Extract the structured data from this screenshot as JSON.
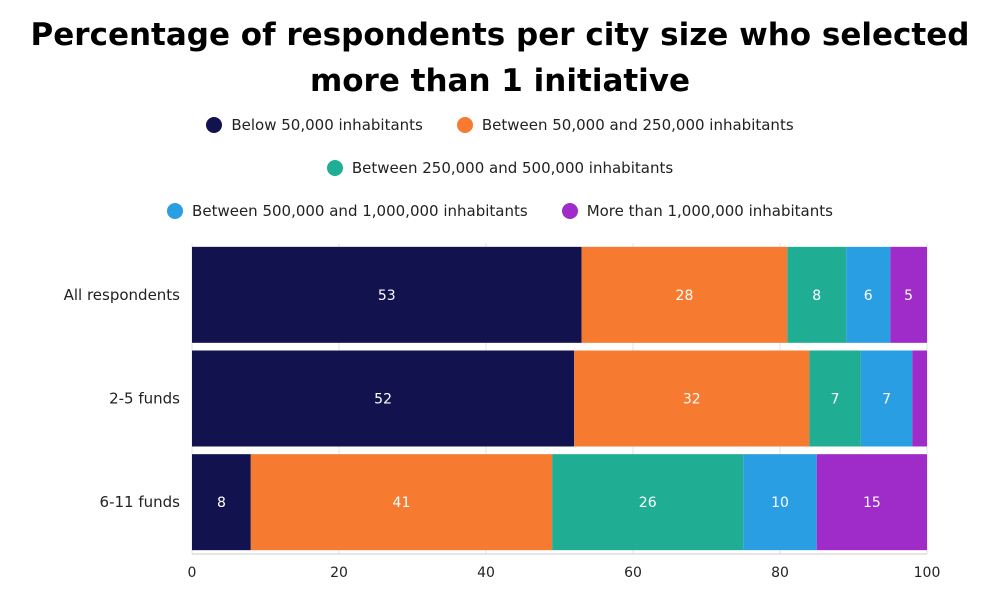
{
  "chart_data": {
    "type": "bar",
    "orientation": "horizontal",
    "stacked": true,
    "title": "Percentage of respondents per city size who selected more than 1 initiative",
    "title_lines": [
      "Percentage of respondents per city size who selected",
      "more than 1 initiative"
    ],
    "categories": [
      "All respondents",
      "2-5 funds",
      "6-11 funds"
    ],
    "series": [
      {
        "name": "Below 50,000 inhabitants",
        "color": "#12124f",
        "values": [
          53,
          52,
          8
        ],
        "labels": [
          "53",
          "52",
          "8"
        ]
      },
      {
        "name": "Between 50,000 and 250,000 inhabitants",
        "color": "#f67a30",
        "values": [
          28,
          32,
          41
        ],
        "labels": [
          "28",
          "32",
          "41"
        ]
      },
      {
        "name": "Between 250,000 and 500,000 inhabitants",
        "color": "#1fae93",
        "values": [
          8,
          7,
          26
        ],
        "labels": [
          "8",
          "7",
          "26"
        ]
      },
      {
        "name": "Between 500,000 and 1,000,000 inhabitants",
        "color": "#2a9ee2",
        "values": [
          6,
          7,
          10
        ],
        "labels": [
          "6",
          "7",
          "10"
        ]
      },
      {
        "name": "More than 1,000,000 inhabitants",
        "color": "#9f2bc8",
        "values": [
          5,
          2,
          15
        ],
        "labels": [
          "5",
          "",
          "15"
        ]
      }
    ],
    "xlim": [
      0,
      100
    ],
    "xticks": [
      "0",
      "20",
      "40",
      "60",
      "80",
      "100"
    ],
    "xlabel": "",
    "ylabel": "",
    "grid": true,
    "legend_position": "top"
  }
}
